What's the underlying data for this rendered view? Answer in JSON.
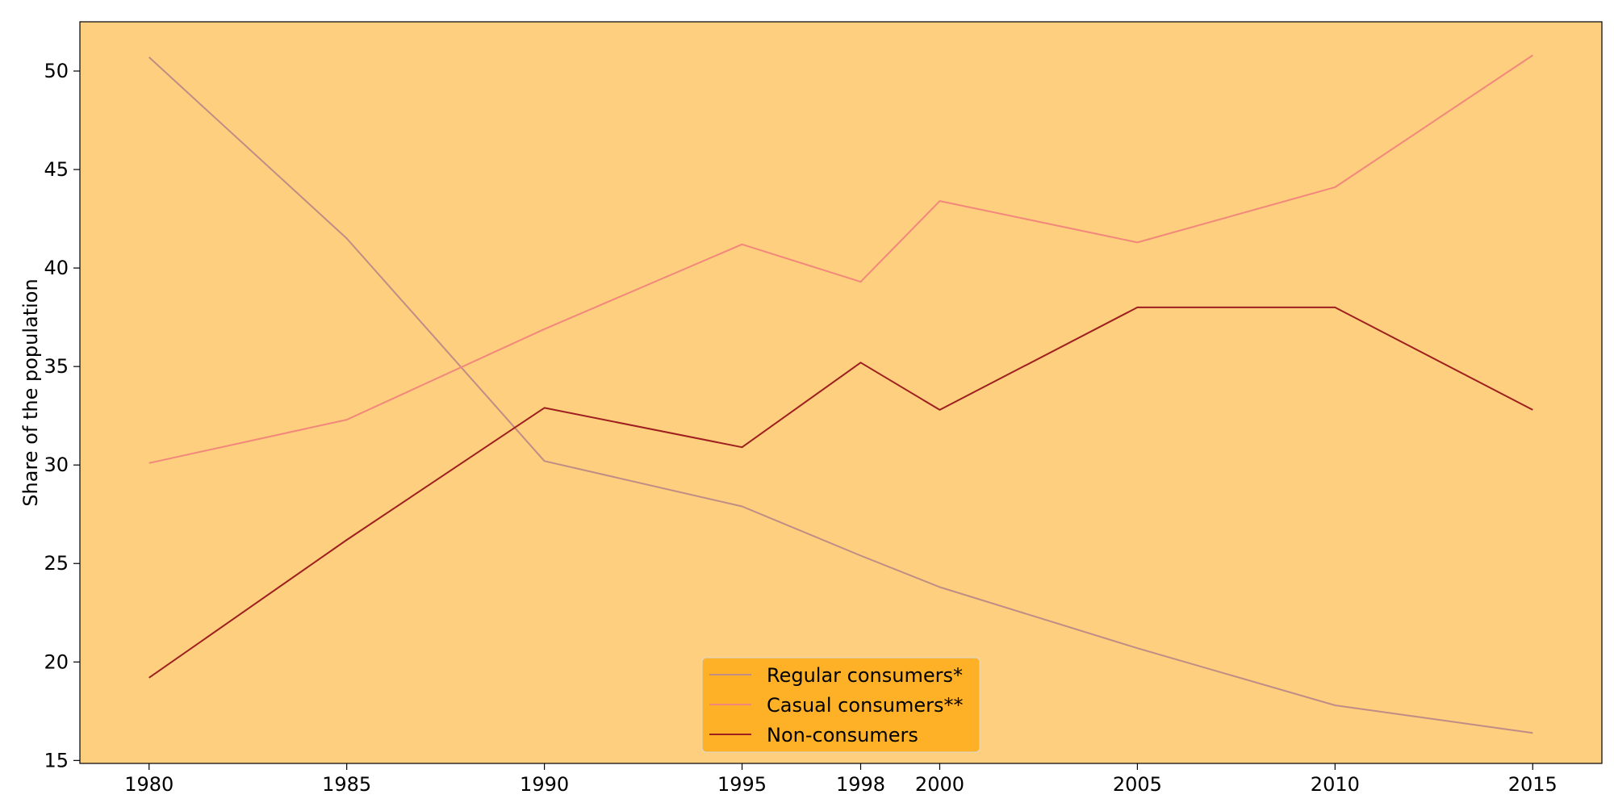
{
  "chart_data": {
    "type": "line",
    "x": [
      1980,
      1985,
      1990,
      1995,
      1998,
      2000,
      2005,
      2010,
      2015
    ],
    "xticks": [
      1980,
      1985,
      1990,
      1995,
      1998,
      2000,
      2005,
      2010,
      2015
    ],
    "xlim": [
      1978.25,
      2016.75
    ],
    "ylim": [
      14.85,
      52.5
    ],
    "yticks": [
      15,
      20,
      25,
      30,
      35,
      40,
      45,
      50
    ],
    "xlabel": "",
    "ylabel": "Share of the population",
    "title": "",
    "grid": false,
    "legend_position": "bottom-center",
    "plot_background": "#fecf7e",
    "legend_background": "#fead1d",
    "series": [
      {
        "name": "Regular consumers*",
        "color": "#bf8d86",
        "values": [
          50.7,
          41.5,
          30.2,
          27.9,
          25.4,
          23.8,
          20.7,
          17.8,
          16.4
        ]
      },
      {
        "name": "Casual consumers**",
        "color": "#f2877c",
        "values": [
          30.1,
          32.3,
          36.9,
          41.2,
          39.3,
          43.4,
          41.3,
          44.1,
          50.8
        ]
      },
      {
        "name": "Non-consumers",
        "color": "#9e1f1f",
        "values": [
          19.2,
          26.2,
          32.9,
          30.9,
          35.2,
          32.8,
          38.0,
          38.0,
          32.8
        ]
      }
    ]
  }
}
